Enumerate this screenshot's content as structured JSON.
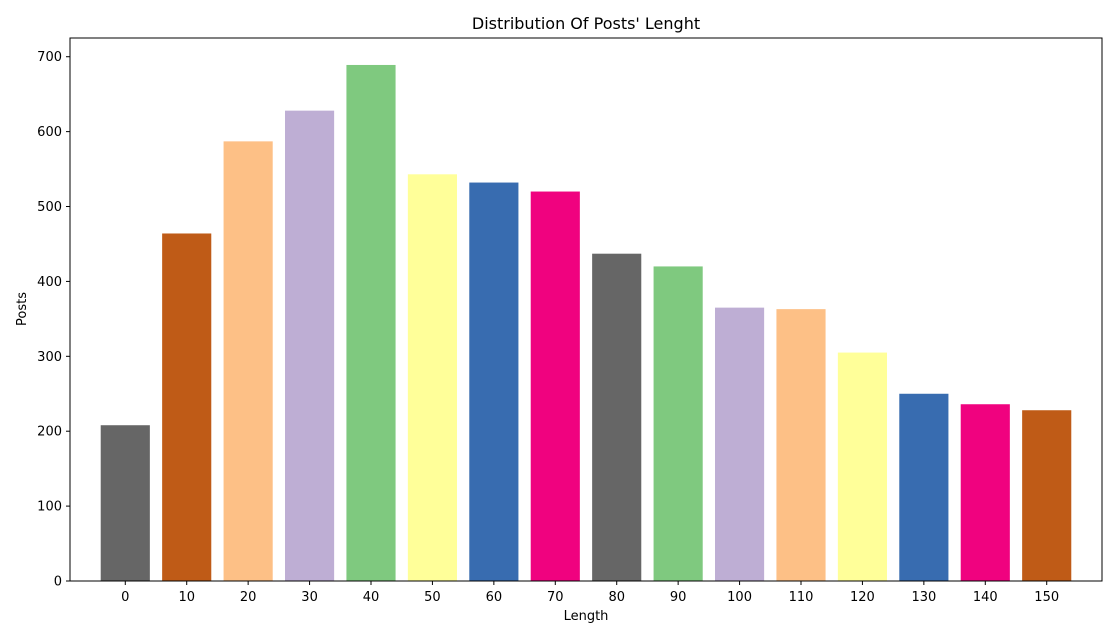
{
  "chart_data": {
    "type": "bar",
    "title": "Distribution Of Posts' Lenght",
    "xlabel": "Length",
    "ylabel": "Posts",
    "categories": [
      "0",
      "10",
      "20",
      "30",
      "40",
      "50",
      "60",
      "70",
      "80",
      "90",
      "100",
      "110",
      "120",
      "130",
      "140",
      "150"
    ],
    "values": [
      208,
      464,
      587,
      628,
      689,
      543,
      532,
      520,
      437,
      420,
      365,
      363,
      305,
      250,
      236,
      228
    ],
    "colors": [
      "#666666",
      "#bf5b17",
      "#fdc086",
      "#beaed4",
      "#7fc97f",
      "#ffff99",
      "#386cb0",
      "#f0027f",
      "#666666",
      "#7fc97f",
      "#beaed4",
      "#fdc086",
      "#ffff99",
      "#386cb0",
      "#f0027f",
      "#bf5b17"
    ],
    "ylim": [
      0,
      725
    ],
    "yticks": [
      0,
      100,
      200,
      300,
      400,
      500,
      600,
      700
    ],
    "grid": false,
    "legend": "none"
  }
}
